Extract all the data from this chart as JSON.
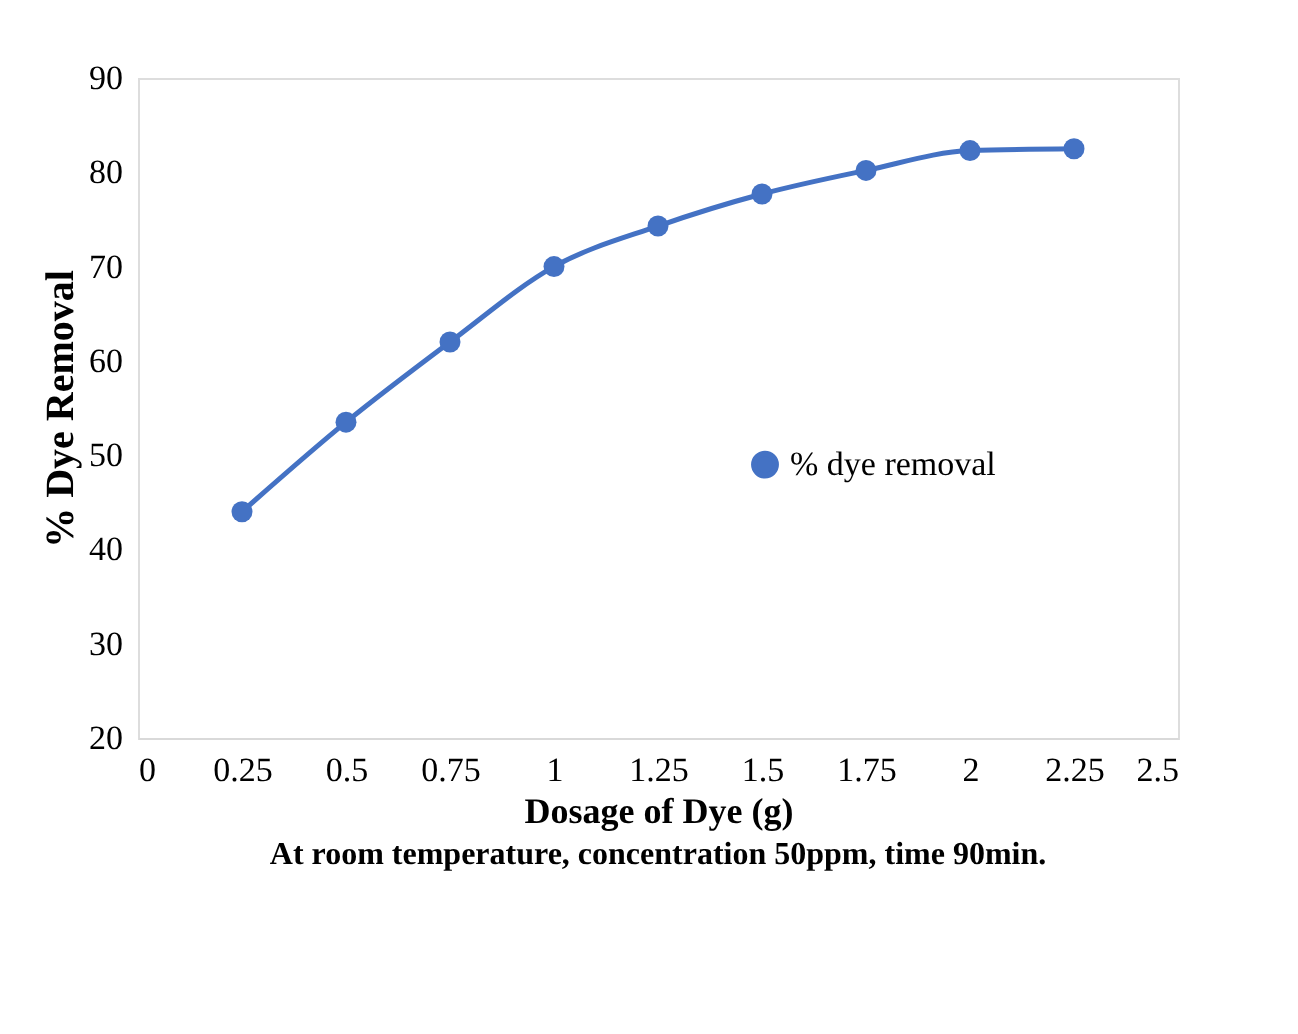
{
  "chart_data": {
    "type": "line",
    "xlabel": "Dosage of Dye (g)",
    "ylabel": "% Dye Removal",
    "annotations": [
      "At room temperature, concentration 50ppm, time 90min."
    ],
    "x": [
      0.25,
      0.5,
      0.75,
      1,
      1.25,
      1.5,
      1.75,
      2,
      2.25
    ],
    "series": [
      {
        "name": "% dye removal",
        "color": "#4472c4",
        "values": [
          44,
          53.5,
          62,
          70,
          74.3,
          77.7,
          80.2,
          82.3,
          82.5
        ]
      }
    ],
    "xlim": [
      0,
      2.5
    ],
    "xticks": [
      0,
      0.25,
      0.5,
      0.75,
      1,
      1.25,
      1.5,
      1.75,
      2,
      2.25,
      2.5
    ],
    "ylim": [
      20,
      90
    ],
    "yticks": [
      20,
      30,
      40,
      50,
      60,
      70,
      80,
      90
    ],
    "grid": false,
    "legend": "right",
    "marker": "circle",
    "line_style": "solid"
  }
}
